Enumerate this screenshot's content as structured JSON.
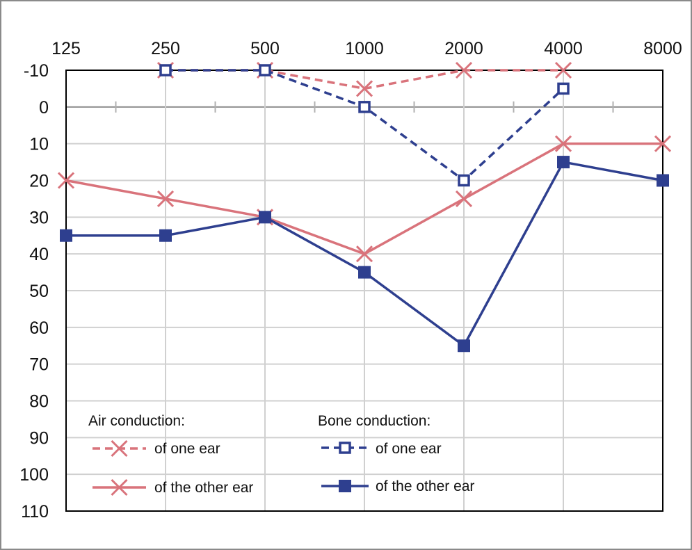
{
  "chart_data": {
    "type": "line",
    "title": "",
    "xlabel": "",
    "ylabel": "",
    "x": [
      125,
      250,
      500,
      1000,
      2000,
      4000,
      8000
    ],
    "x_tick_labels": [
      "125",
      "250",
      "500",
      "1000",
      "2000",
      "4000",
      "8000"
    ],
    "y_tick_labels": [
      "-10",
      "0",
      "10",
      "20",
      "30",
      "40",
      "50",
      "60",
      "70",
      "80",
      "90",
      "100",
      "110"
    ],
    "ylim": [
      -10,
      110
    ],
    "y_inverted": true,
    "grid": true,
    "legend": {
      "placement": "bottom-left",
      "air_title": "Air conduction:",
      "bone_title": "Bone conduction:"
    },
    "colors": {
      "air": "#d9737b",
      "bone": "#2e3f8f"
    },
    "series": [
      {
        "name": "of one ear",
        "group": "air",
        "marker": "x",
        "dashed": true,
        "x": [
          250,
          500,
          1000,
          2000,
          4000
        ],
        "values": [
          -10,
          -10,
          -5,
          -10,
          -10
        ]
      },
      {
        "name": "of the other ear",
        "group": "air",
        "marker": "x",
        "dashed": false,
        "x": [
          125,
          250,
          500,
          1000,
          2000,
          4000,
          8000
        ],
        "values": [
          20,
          25,
          30,
          40,
          25,
          10,
          10
        ]
      },
      {
        "name": "of one ear",
        "group": "bone",
        "marker": "open-square",
        "dashed": true,
        "x": [
          250,
          500,
          1000,
          2000,
          4000
        ],
        "values": [
          -10,
          -10,
          0,
          20,
          -5
        ]
      },
      {
        "name": "of the other ear",
        "group": "bone",
        "marker": "filled-square",
        "dashed": false,
        "x": [
          125,
          250,
          500,
          1000,
          2000,
          4000,
          8000
        ],
        "values": [
          35,
          35,
          30,
          45,
          65,
          15,
          20
        ]
      }
    ]
  }
}
